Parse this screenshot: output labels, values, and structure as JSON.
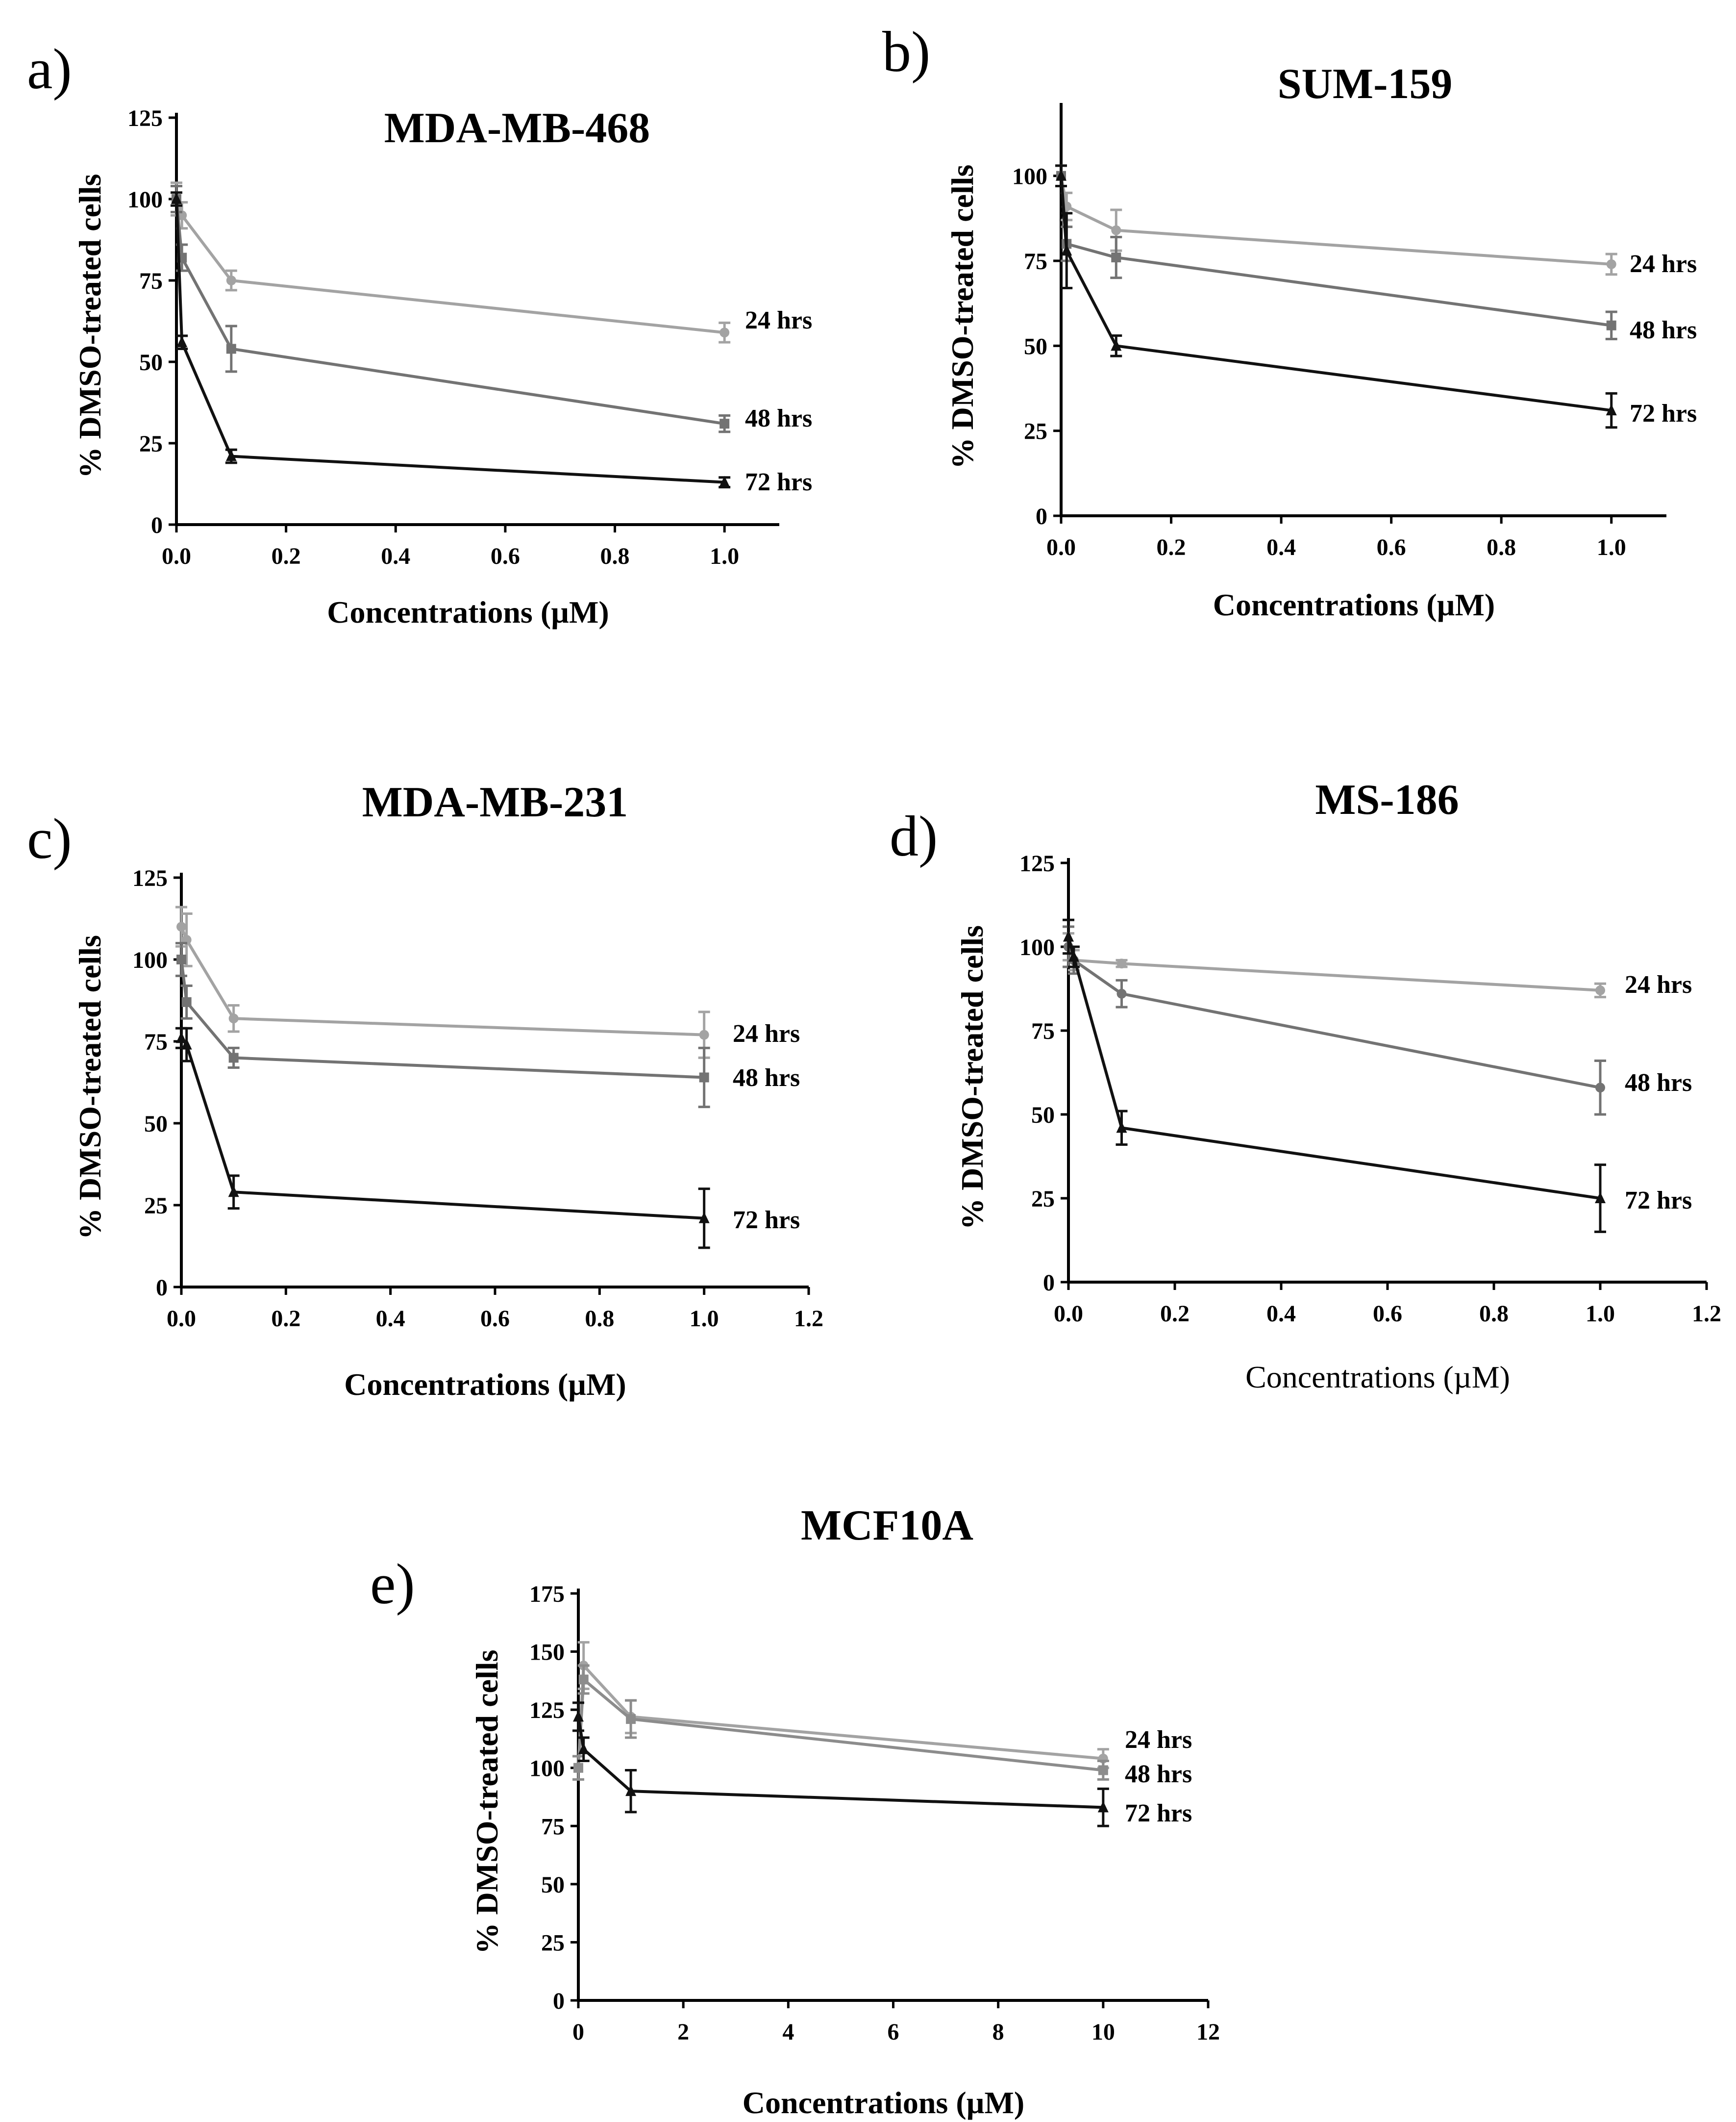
{
  "chart_data": [
    {
      "panel": "a)",
      "type": "line",
      "title": "MDA-MB-468",
      "xlabel": "Concentrations (µM)",
      "ylabel": "% DMSO-treated cells",
      "xlim": [
        0,
        1.1
      ],
      "ylim": [
        0,
        125
      ],
      "xticks": [
        0.0,
        0.2,
        0.4,
        0.6,
        0.8,
        1.0
      ],
      "xtick_labels": [
        "0.0",
        "0.2",
        "0.4",
        "0.6",
        "0.8",
        "1.0"
      ],
      "yticks": [
        0,
        25,
        50,
        75,
        100,
        125
      ],
      "ytick_labels": [
        "0",
        "25",
        "50",
        "75",
        "100",
        "125"
      ],
      "grid": false,
      "series": [
        {
          "name": "24 hrs",
          "label": "24 hrs",
          "marker": "circle",
          "color": "#a3a3a3",
          "x": [
            0,
            0.01,
            0.1,
            1.0
          ],
          "values": [
            100,
            95,
            75,
            59
          ],
          "errors": [
            5,
            4,
            3,
            3
          ]
        },
        {
          "name": "48 hrs",
          "label": "48 hrs",
          "marker": "square",
          "color": "#737373",
          "x": [
            0,
            0.01,
            0.1,
            1.0
          ],
          "values": [
            100,
            82,
            54,
            31
          ],
          "errors": [
            4,
            4,
            7,
            2.5
          ]
        },
        {
          "name": "72 hrs",
          "label": "72 hrs",
          "marker": "triangle",
          "color": "#111111",
          "x": [
            0,
            0.01,
            0.1,
            1.0
          ],
          "values": [
            100,
            56,
            21,
            13
          ],
          "errors": [
            2,
            2,
            2,
            1.5
          ]
        }
      ]
    },
    {
      "panel": "b)",
      "type": "line",
      "title": "SUM-159",
      "xlabel": "Concentrations (µM)",
      "ylabel": "% DMSO-treated cells",
      "xlim": [
        0,
        1.1
      ],
      "ylim": [
        0,
        120
      ],
      "xticks": [
        0.0,
        0.2,
        0.4,
        0.6,
        0.8,
        1.0
      ],
      "xtick_labels": [
        "0.0",
        "0.2",
        "0.4",
        "0.6",
        "0.8",
        "1.0"
      ],
      "yticks": [
        0,
        25,
        50,
        75,
        100
      ],
      "ytick_labels": [
        "0",
        "25",
        "50",
        "75",
        "100"
      ],
      "grid": false,
      "series": [
        {
          "name": "24 hrs",
          "label": "24 hrs",
          "marker": "circle",
          "color": "#a3a3a3",
          "x": [
            0,
            0.01,
            0.1,
            1.0
          ],
          "values": [
            100,
            91,
            84,
            74
          ],
          "errors": [
            3,
            4,
            6,
            3
          ]
        },
        {
          "name": "48 hrs",
          "label": "48 hrs",
          "marker": "square",
          "color": "#737373",
          "x": [
            0,
            0.01,
            0.1,
            1.0
          ],
          "values": [
            100,
            80,
            76,
            56
          ],
          "errors": [
            3,
            5,
            6,
            4
          ]
        },
        {
          "name": "72 hrs",
          "label": "72 hrs",
          "marker": "triangle",
          "color": "#111111",
          "x": [
            0,
            0.01,
            0.1,
            1.0
          ],
          "values": [
            100,
            78,
            50,
            31
          ],
          "errors": [
            3,
            11,
            3,
            5
          ]
        }
      ]
    },
    {
      "panel": "c)",
      "type": "line",
      "title": "MDA-MB-231",
      "xlabel": "Concentrations (µM)",
      "ylabel": "% DMSO-treated cells",
      "xlim": [
        0,
        1.2
      ],
      "ylim": [
        0,
        125
      ],
      "xticks": [
        0.0,
        0.2,
        0.4,
        0.6,
        0.8,
        1.0,
        1.2
      ],
      "xtick_labels": [
        "0.0",
        "0.2",
        "0.4",
        "0.6",
        "0.8",
        "1.0",
        "1.2"
      ],
      "yticks": [
        0,
        25,
        50,
        75,
        100,
        125
      ],
      "ytick_labels": [
        "0",
        "25",
        "50",
        "75",
        "100",
        "125"
      ],
      "grid": false,
      "series": [
        {
          "name": "24 hrs",
          "label": "24 hrs",
          "marker": "circle",
          "color": "#a3a3a3",
          "x": [
            0,
            0.01,
            0.1,
            1.0
          ],
          "values": [
            110,
            106,
            82,
            77
          ],
          "errors": [
            6,
            8,
            4,
            7
          ]
        },
        {
          "name": "48 hrs",
          "label": "48 hrs",
          "marker": "square",
          "color": "#737373",
          "x": [
            0,
            0.01,
            0.1,
            1.0
          ],
          "values": [
            100,
            87,
            70,
            64
          ],
          "errors": [
            5,
            5,
            3,
            9
          ]
        },
        {
          "name": "72 hrs",
          "label": "72 hrs",
          "marker": "triangle",
          "color": "#111111",
          "x": [
            0,
            0.01,
            0.1,
            1.0
          ],
          "values": [
            76,
            74,
            29,
            21
          ],
          "errors": [
            3,
            5,
            5,
            9
          ]
        }
      ]
    },
    {
      "panel": "d)",
      "type": "line",
      "title": "MS-186",
      "xlabel": "Concentrations (µM)",
      "xlabel_bold": false,
      "ylabel": "% DMSO-treated cells",
      "xlim": [
        0,
        1.2
      ],
      "ylim": [
        0,
        125
      ],
      "xticks": [
        0.0,
        0.2,
        0.4,
        0.6,
        0.8,
        1.0,
        1.2
      ],
      "xtick_labels": [
        "0.0",
        "0.2",
        "0.4",
        "0.6",
        "0.8",
        "1.0",
        "1.2"
      ],
      "yticks": [
        0,
        25,
        50,
        75,
        100,
        125
      ],
      "ytick_labels": [
        "0",
        "25",
        "50",
        "75",
        "100",
        "125"
      ],
      "grid": false,
      "series": [
        {
          "name": "24 hrs",
          "label": "24 hrs",
          "marker": "circle",
          "color": "#a3a3a3",
          "x": [
            0,
            0.01,
            0.1,
            1.0
          ],
          "values": [
            100,
            96,
            95,
            87
          ],
          "errors": [
            4,
            3,
            1,
            2
          ]
        },
        {
          "name": "48 hrs",
          "label": "48 hrs",
          "marker": "circle",
          "color": "#737373",
          "x": [
            0,
            0.01,
            0.1,
            1.0
          ],
          "values": [
            100,
            96,
            86,
            58
          ],
          "errors": [
            6,
            4,
            4,
            8
          ]
        },
        {
          "name": "72 hrs",
          "label": "72 hrs",
          "marker": "triangle",
          "color": "#111111",
          "x": [
            0,
            0.01,
            0.1,
            1.0
          ],
          "values": [
            103,
            97,
            46,
            25
          ],
          "errors": [
            5,
            3,
            5,
            10
          ]
        }
      ]
    },
    {
      "panel": "e)",
      "type": "line",
      "title": "MCF10A",
      "xlabel": "Concentrations (µM)",
      "ylabel": "% DMSO-treated cells",
      "xlim": [
        0,
        12
      ],
      "ylim": [
        0,
        175
      ],
      "xticks": [
        0,
        2,
        4,
        6,
        8,
        10,
        12
      ],
      "xtick_labels": [
        "0",
        "2",
        "4",
        "6",
        "8",
        "10",
        "12"
      ],
      "yticks": [
        0,
        25,
        50,
        75,
        100,
        125,
        150,
        175
      ],
      "ytick_labels": [
        "0",
        "25",
        "50",
        "75",
        "100",
        "125",
        "150",
        "175"
      ],
      "grid": false,
      "series": [
        {
          "name": "24 hrs",
          "label": "24 hrs",
          "marker": "circle",
          "color": "#a3a3a3",
          "x": [
            0,
            0.1,
            1,
            10
          ],
          "values": [
            100,
            144,
            122,
            104
          ],
          "errors": [
            5,
            10,
            7,
            4
          ]
        },
        {
          "name": "48 hrs",
          "label": "48 hrs",
          "marker": "square",
          "color": "#8c8c8c",
          "x": [
            0,
            0.1,
            1,
            10
          ],
          "values": [
            100,
            138,
            121,
            99
          ],
          "errors": [
            5,
            6,
            8,
            4
          ]
        },
        {
          "name": "72 hrs",
          "label": "72 hrs",
          "marker": "triangle",
          "color": "#111111",
          "x": [
            0,
            0.1,
            1,
            10
          ],
          "values": [
            122,
            108,
            90,
            83
          ],
          "errors": [
            6,
            5,
            9,
            8
          ]
        }
      ]
    }
  ]
}
